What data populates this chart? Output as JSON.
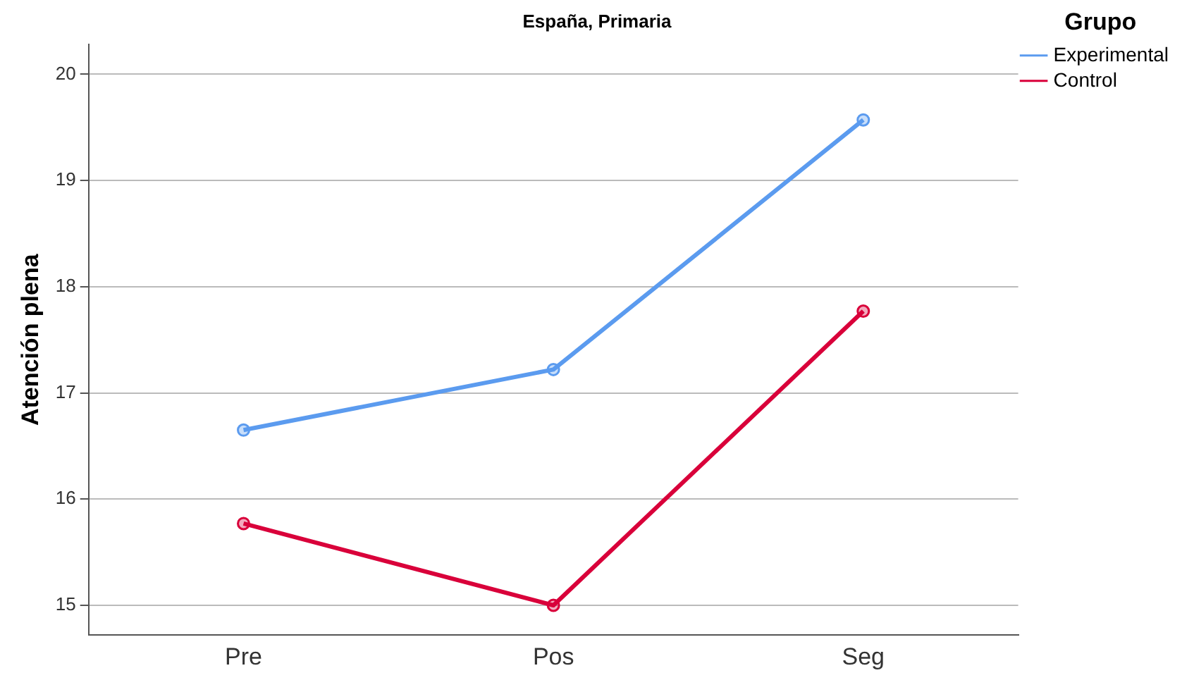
{
  "chart_data": {
    "type": "line",
    "title": "España, Primaria",
    "ylabel": "Atención plena",
    "legend_title": "Grupo",
    "categories": [
      "Pre",
      "Pos",
      "Seg"
    ],
    "series": [
      {
        "name": "Experimental",
        "color": "#5b9bef",
        "values": [
          16.65,
          17.22,
          19.57
        ]
      },
      {
        "name": "Control",
        "color": "#d9003a",
        "values": [
          15.77,
          15.0,
          17.77
        ]
      }
    ],
    "ylim": [
      14.72,
      20.28
    ],
    "yticks": [
      15,
      16,
      17,
      18,
      19,
      20
    ],
    "grid": "y",
    "legend": "top right",
    "marker": "circle",
    "line_style": "solid"
  }
}
